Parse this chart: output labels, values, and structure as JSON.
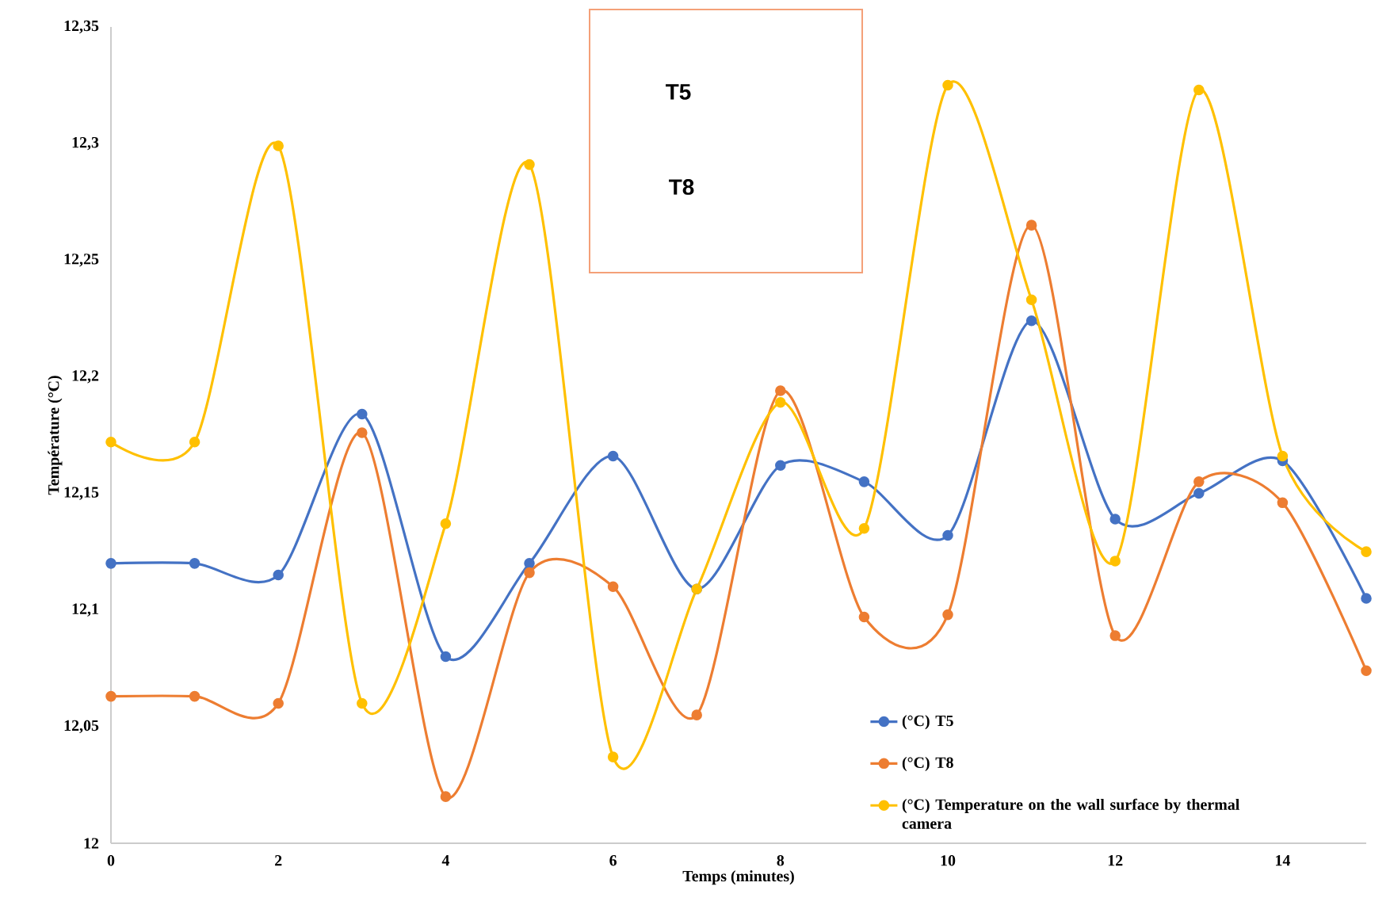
{
  "chart_data": {
    "type": "line",
    "xlabel": "Temps (minutes)",
    "ylabel": "Température (°C)",
    "x": [
      0,
      1,
      2,
      3,
      4,
      5,
      6,
      7,
      8,
      9,
      10,
      11,
      12,
      13,
      14,
      15
    ],
    "series": [
      {
        "name": "(°C) T5",
        "color": "#4472c4",
        "values": [
          12.12,
          12.12,
          12.115,
          12.184,
          12.08,
          12.12,
          12.166,
          12.109,
          12.162,
          12.155,
          12.132,
          12.224,
          12.139,
          12.15,
          12.164,
          12.105
        ]
      },
      {
        "name": "(°C) T8",
        "color": "#ed7d31",
        "values": [
          12.063,
          12.063,
          12.06,
          12.176,
          12.02,
          12.116,
          12.11,
          12.055,
          12.194,
          12.097,
          12.098,
          12.265,
          12.089,
          12.155,
          12.146,
          12.074
        ]
      },
      {
        "name": "(°C) Temperature on the wall surface by thermal camera",
        "color": "#ffc000",
        "values": [
          12.172,
          12.172,
          12.299,
          12.06,
          12.137,
          12.291,
          12.037,
          12.109,
          12.189,
          12.135,
          12.325,
          12.233,
          12.121,
          12.323,
          12.166,
          12.125
        ]
      }
    ],
    "xlim": [
      0,
      15
    ],
    "xticks": [
      0,
      2,
      4,
      6,
      8,
      10,
      12,
      14
    ],
    "ylim": [
      12,
      12.35
    ],
    "yticks": [
      {
        "value": 12,
        "label": "12"
      },
      {
        "value": 12.05,
        "label": "12,05"
      },
      {
        "value": 12.1,
        "label": "12,1"
      },
      {
        "value": 12.15,
        "label": "12,15"
      },
      {
        "value": 12.2,
        "label": "12,2"
      },
      {
        "value": 12.25,
        "label": "12,25"
      },
      {
        "value": 12.3,
        "label": "12,3"
      },
      {
        "value": 12.35,
        "label": "12,35"
      }
    ],
    "annotations": [
      "T5",
      "T8"
    ],
    "marker": "circle",
    "grid": false,
    "legend": "bottom right"
  }
}
